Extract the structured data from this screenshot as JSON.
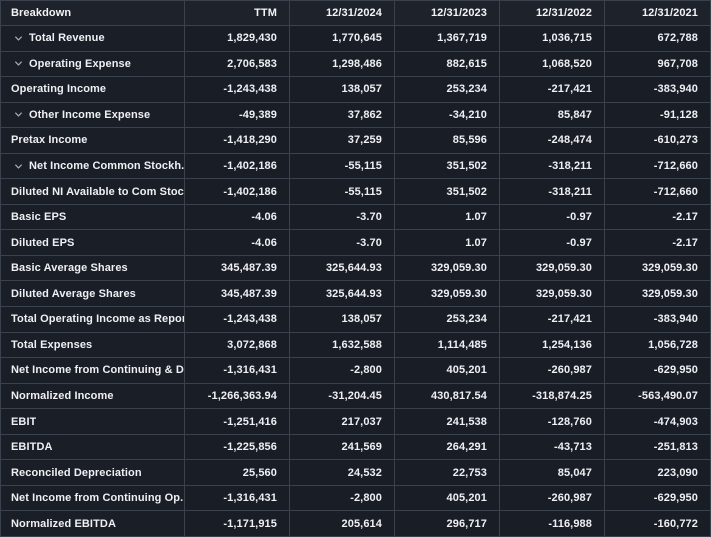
{
  "table": {
    "columns": [
      "Breakdown",
      "TTM",
      "12/31/2024",
      "12/31/2023",
      "12/31/2022",
      "12/31/2021"
    ],
    "rows": [
      {
        "label": "Total Revenue",
        "expandable": true,
        "values": [
          "1,829,430",
          "1,770,645",
          "1,367,719",
          "1,036,715",
          "672,788"
        ]
      },
      {
        "label": "Operating Expense",
        "expandable": true,
        "values": [
          "2,706,583",
          "1,298,486",
          "882,615",
          "1,068,520",
          "967,708"
        ]
      },
      {
        "label": "Operating Income",
        "expandable": false,
        "values": [
          "-1,243,438",
          "138,057",
          "253,234",
          "-217,421",
          "-383,940"
        ]
      },
      {
        "label": "Other Income Expense",
        "expandable": true,
        "values": [
          "-49,389",
          "37,862",
          "-34,210",
          "85,847",
          "-91,128"
        ]
      },
      {
        "label": "Pretax Income",
        "expandable": false,
        "values": [
          "-1,418,290",
          "37,259",
          "85,596",
          "-248,474",
          "-610,273"
        ]
      },
      {
        "label": "Net Income Common Stockh...",
        "expandable": true,
        "values": [
          "-1,402,186",
          "-55,115",
          "351,502",
          "-318,211",
          "-712,660"
        ]
      },
      {
        "label": "Diluted NI Available to Com Stoc...",
        "expandable": false,
        "values": [
          "-1,402,186",
          "-55,115",
          "351,502",
          "-318,211",
          "-712,660"
        ]
      },
      {
        "label": "Basic EPS",
        "expandable": false,
        "values": [
          "-4.06",
          "-3.70",
          "1.07",
          "-0.97",
          "-2.17"
        ]
      },
      {
        "label": "Diluted EPS",
        "expandable": false,
        "values": [
          "-4.06",
          "-3.70",
          "1.07",
          "-0.97",
          "-2.17"
        ]
      },
      {
        "label": "Basic Average Shares",
        "expandable": false,
        "values": [
          "345,487.39",
          "325,644.93",
          "329,059.30",
          "329,059.30",
          "329,059.30"
        ]
      },
      {
        "label": "Diluted Average Shares",
        "expandable": false,
        "values": [
          "345,487.39",
          "325,644.93",
          "329,059.30",
          "329,059.30",
          "329,059.30"
        ]
      },
      {
        "label": "Total Operating Income as Repor...",
        "expandable": false,
        "values": [
          "-1,243,438",
          "138,057",
          "253,234",
          "-217,421",
          "-383,940"
        ]
      },
      {
        "label": "Total Expenses",
        "expandable": false,
        "values": [
          "3,072,868",
          "1,632,588",
          "1,114,485",
          "1,254,136",
          "1,056,728"
        ]
      },
      {
        "label": "Net Income from Continuing & D...",
        "expandable": false,
        "values": [
          "-1,316,431",
          "-2,800",
          "405,201",
          "-260,987",
          "-629,950"
        ]
      },
      {
        "label": "Normalized Income",
        "expandable": false,
        "values": [
          "-1,266,363.94",
          "-31,204.45",
          "430,817.54",
          "-318,874.25",
          "-563,490.07"
        ]
      },
      {
        "label": "EBIT",
        "expandable": false,
        "values": [
          "-1,251,416",
          "217,037",
          "241,538",
          "-128,760",
          "-474,903"
        ]
      },
      {
        "label": "EBITDA",
        "expandable": false,
        "values": [
          "-1,225,856",
          "241,569",
          "264,291",
          "-43,713",
          "-251,813"
        ]
      },
      {
        "label": "Reconciled Depreciation",
        "expandable": false,
        "values": [
          "25,560",
          "24,532",
          "22,753",
          "85,047",
          "223,090"
        ]
      },
      {
        "label": "Net Income from Continuing Op...",
        "expandable": false,
        "values": [
          "-1,316,431",
          "-2,800",
          "405,201",
          "-260,987",
          "-629,950"
        ]
      },
      {
        "label": "Normalized EBITDA",
        "expandable": false,
        "values": [
          "-1,171,915",
          "205,614",
          "296,717",
          "-116,988",
          "-160,772"
        ]
      }
    ]
  },
  "icons": {
    "expand_chevron": "chevron-down-icon"
  },
  "colors": {
    "background": "#1b1f28",
    "header_background": "#1e222b",
    "cell_background": "#191d26",
    "border": "#3b414d",
    "text": "#eef0f3",
    "chevron": "#a7abb3"
  }
}
